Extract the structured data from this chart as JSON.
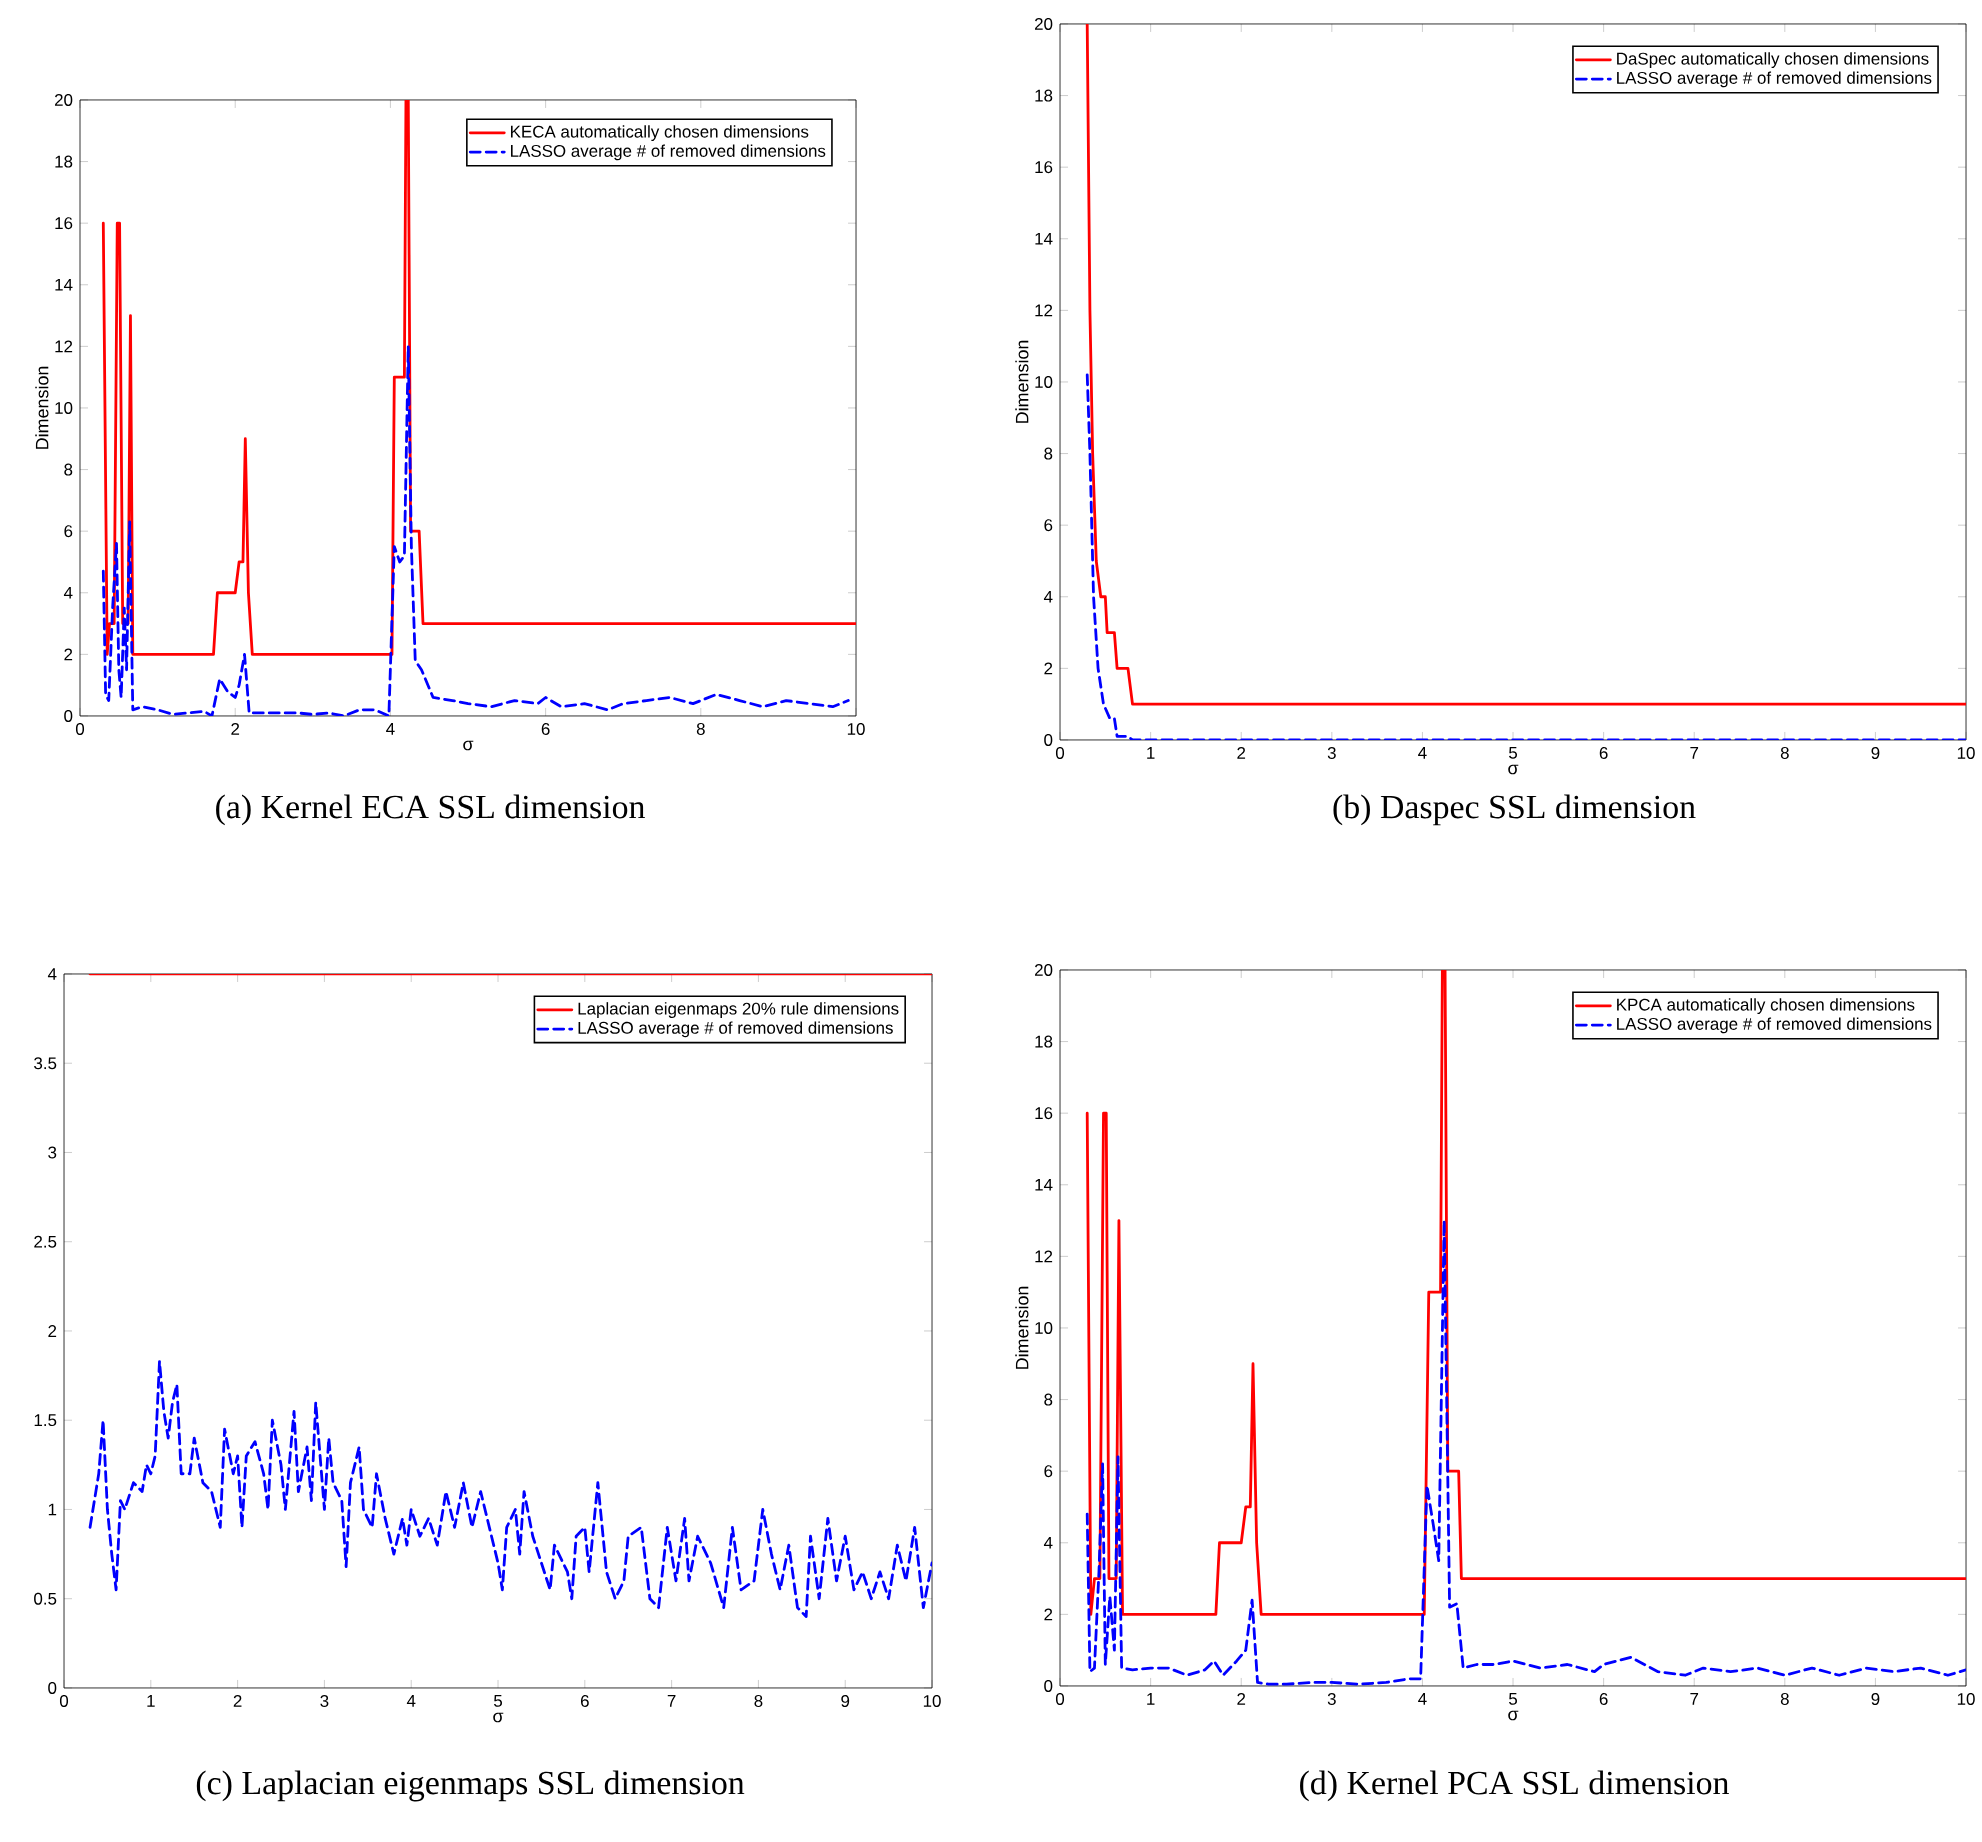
{
  "chart_data": [
    {
      "type": "line",
      "title": "(a) Kernel ECA SSL dimension",
      "xlabel": "σ",
      "ylabel": "Dimension",
      "xlim": [
        0,
        10
      ],
      "ylim": [
        0,
        20
      ],
      "xticks": [
        0,
        2,
        4,
        6,
        8,
        10
      ],
      "yticks": [
        0,
        2,
        4,
        6,
        8,
        10,
        12,
        14,
        16,
        18,
        20
      ],
      "legend": "top right",
      "grid": false,
      "series": [
        {
          "name": "KECA automatically chosen dimensions",
          "color": "#ff0000",
          "line_style": "solid",
          "x": [
            0.3,
            0.35,
            0.38,
            0.44,
            0.48,
            0.51,
            0.55,
            0.62,
            0.65,
            0.68,
            1.72,
            1.77,
            2.0,
            2.05,
            2.1,
            2.13,
            2.17,
            2.22,
            4.02,
            4.05,
            4.18,
            4.2,
            4.23,
            4.26,
            4.37,
            4.42,
            10
          ],
          "values": [
            16,
            2,
            3,
            3,
            16,
            16,
            3,
            3,
            13,
            2,
            2,
            4,
            4,
            5,
            5,
            9,
            4,
            2,
            2,
            11,
            11,
            20,
            20,
            6,
            6,
            3,
            3
          ]
        },
        {
          "name": "LASSO average # of removed dimensions",
          "color": "#0000ff",
          "line_style": "dashed",
          "x": [
            0.3,
            0.33,
            0.37,
            0.42,
            0.47,
            0.5,
            0.53,
            0.57,
            0.6,
            0.64,
            0.68,
            0.8,
            1.0,
            1.2,
            1.4,
            1.6,
            1.7,
            1.8,
            1.9,
            2.0,
            2.05,
            2.12,
            2.18,
            2.4,
            2.6,
            2.8,
            3.0,
            3.2,
            3.4,
            3.6,
            3.8,
            3.98,
            4.05,
            4.12,
            4.18,
            4.23,
            4.27,
            4.32,
            4.4,
            4.55,
            4.8,
            5.0,
            5.3,
            5.6,
            5.9,
            6.0,
            6.2,
            6.5,
            6.8,
            7.0,
            7.3,
            7.6,
            7.9,
            8.2,
            8.5,
            8.8,
            9.1,
            9.4,
            9.7,
            9.9
          ],
          "values": [
            4.7,
            0.7,
            0.5,
            3.5,
            5.6,
            1.5,
            0.6,
            3.5,
            1.5,
            6.3,
            0.2,
            0.3,
            0.2,
            0.05,
            0.1,
            0.15,
            0,
            1.2,
            0.8,
            0.6,
            1.0,
            2.0,
            0.1,
            0.1,
            0.1,
            0.1,
            0.05,
            0.1,
            0,
            0.2,
            0.2,
            0,
            5.5,
            5.0,
            5.2,
            12,
            5.5,
            1.8,
            1.5,
            0.6,
            0.5,
            0.4,
            0.3,
            0.5,
            0.4,
            0.6,
            0.3,
            0.4,
            0.2,
            0.4,
            0.5,
            0.6,
            0.4,
            0.7,
            0.5,
            0.3,
            0.5,
            0.4,
            0.3,
            0.5
          ]
        }
      ]
    },
    {
      "type": "line",
      "title": "(b) Daspec SSL dimension",
      "xlabel": "σ",
      "ylabel": "Dimension",
      "xlim": [
        0,
        10
      ],
      "ylim": [
        0,
        20
      ],
      "xticks": [
        0,
        1,
        2,
        3,
        4,
        5,
        6,
        7,
        8,
        9,
        10
      ],
      "yticks": [
        0,
        2,
        4,
        6,
        8,
        10,
        12,
        14,
        16,
        18,
        20
      ],
      "legend": "top right",
      "grid": false,
      "series": [
        {
          "name": "DaSpec automatically chosen dimensions",
          "color": "#ff0000",
          "line_style": "solid",
          "x": [
            0.3,
            0.33,
            0.36,
            0.4,
            0.45,
            0.5,
            0.52,
            0.6,
            0.63,
            0.75,
            0.8,
            10
          ],
          "values": [
            20,
            12,
            8,
            5,
            4,
            4,
            3,
            3,
            2,
            2,
            1,
            1
          ]
        },
        {
          "name": "LASSO average # of removed dimensions",
          "color": "#0000ff",
          "line_style": "dashed",
          "x": [
            0.3,
            0.33,
            0.37,
            0.42,
            0.48,
            0.55,
            0.6,
            0.63,
            0.7,
            0.75,
            0.8,
            10
          ],
          "values": [
            10.2,
            8,
            4,
            2,
            1,
            0.6,
            0.6,
            0.1,
            0.1,
            0.1,
            0,
            0
          ]
        }
      ]
    },
    {
      "type": "line",
      "title": "(c) Laplacian eigenmaps SSL dimension",
      "xlabel": "σ",
      "xlim": [
        0,
        10
      ],
      "ylim": [
        0,
        4
      ],
      "xticks": [
        0,
        1,
        2,
        3,
        4,
        5,
        6,
        7,
        8,
        9,
        10
      ],
      "yticks": [
        0,
        0.5,
        1,
        1.5,
        2,
        2.5,
        3,
        3.5,
        4
      ],
      "legend": "top right",
      "grid": false,
      "series": [
        {
          "name": "Laplacian eigenmaps 20% rule dimensions",
          "color": "#ff0000",
          "line_style": "solid",
          "x": [
            0.3,
            10
          ],
          "values": [
            4,
            4
          ]
        },
        {
          "name": "LASSO average # of removed dimensions",
          "color": "#0000ff",
          "line_style": "dashed",
          "x": [
            0.3,
            0.35,
            0.4,
            0.45,
            0.5,
            0.55,
            0.6,
            0.65,
            0.7,
            0.8,
            0.9,
            0.95,
            1.0,
            1.05,
            1.1,
            1.15,
            1.2,
            1.25,
            1.3,
            1.35,
            1.45,
            1.5,
            1.6,
            1.7,
            1.8,
            1.85,
            1.95,
            2.0,
            2.05,
            2.1,
            2.2,
            2.3,
            2.35,
            2.4,
            2.5,
            2.55,
            2.65,
            2.7,
            2.8,
            2.85,
            2.9,
            3.0,
            3.05,
            3.1,
            3.2,
            3.25,
            3.3,
            3.4,
            3.45,
            3.55,
            3.6,
            3.7,
            3.8,
            3.9,
            3.95,
            4.0,
            4.1,
            4.2,
            4.3,
            4.4,
            4.5,
            4.6,
            4.7,
            4.8,
            4.9,
            5.0,
            5.05,
            5.1,
            5.2,
            5.25,
            5.3,
            5.4,
            5.5,
            5.6,
            5.65,
            5.8,
            5.85,
            5.9,
            6.0,
            6.05,
            6.15,
            6.25,
            6.35,
            6.45,
            6.5,
            6.65,
            6.75,
            6.85,
            6.95,
            7.05,
            7.15,
            7.2,
            7.3,
            7.45,
            7.6,
            7.7,
            7.8,
            7.95,
            8.05,
            8.15,
            8.25,
            8.35,
            8.45,
            8.55,
            8.6,
            8.7,
            8.8,
            8.9,
            9.0,
            9.1,
            9.2,
            9.3,
            9.4,
            9.5,
            9.6,
            9.7,
            9.8,
            9.9,
            10.0
          ],
          "values": [
            0.9,
            1.05,
            1.2,
            1.5,
            1.0,
            0.75,
            0.55,
            1.05,
            1.0,
            1.15,
            1.1,
            1.25,
            1.2,
            1.3,
            1.83,
            1.55,
            1.4,
            1.6,
            1.7,
            1.2,
            1.2,
            1.4,
            1.15,
            1.1,
            0.9,
            1.45,
            1.2,
            1.3,
            0.9,
            1.3,
            1.38,
            1.2,
            1.0,
            1.5,
            1.25,
            1.0,
            1.55,
            1.1,
            1.35,
            1.05,
            1.6,
            1.0,
            1.4,
            1.15,
            1.05,
            0.68,
            1.15,
            1.35,
            1.0,
            0.9,
            1.2,
            0.95,
            0.75,
            0.95,
            0.8,
            1.0,
            0.85,
            0.95,
            0.8,
            1.1,
            0.9,
            1.15,
            0.9,
            1.1,
            0.9,
            0.7,
            0.55,
            0.9,
            1.0,
            0.75,
            1.1,
            0.85,
            0.7,
            0.55,
            0.8,
            0.65,
            0.5,
            0.85,
            0.9,
            0.65,
            1.15,
            0.65,
            0.5,
            0.6,
            0.85,
            0.9,
            0.5,
            0.45,
            0.9,
            0.6,
            0.95,
            0.6,
            0.85,
            0.7,
            0.45,
            0.9,
            0.55,
            0.6,
            1.0,
            0.75,
            0.55,
            0.8,
            0.45,
            0.4,
            0.85,
            0.5,
            0.95,
            0.6,
            0.85,
            0.55,
            0.65,
            0.5,
            0.65,
            0.5,
            0.8,
            0.6,
            0.9,
            0.45,
            0.7
          ]
        }
      ]
    },
    {
      "type": "line",
      "title": "(d) Kernel PCA SSL dimension",
      "xlabel": "σ",
      "ylabel": "Dimension",
      "xlim": [
        0,
        10
      ],
      "ylim": [
        0,
        20
      ],
      "xticks": [
        0,
        1,
        2,
        3,
        4,
        5,
        6,
        7,
        8,
        9,
        10
      ],
      "yticks": [
        0,
        2,
        4,
        6,
        8,
        10,
        12,
        14,
        16,
        18,
        20
      ],
      "legend": "top right",
      "grid": false,
      "series": [
        {
          "name": "KPCA automatically chosen dimensions",
          "color": "#ff0000",
          "line_style": "solid",
          "x": [
            0.3,
            0.34,
            0.38,
            0.44,
            0.48,
            0.51,
            0.54,
            0.62,
            0.65,
            0.69,
            1.72,
            1.76,
            2.0,
            2.05,
            2.1,
            2.13,
            2.17,
            2.22,
            4.02,
            4.07,
            4.2,
            4.22,
            4.25,
            4.28,
            4.4,
            4.43,
            10
          ],
          "values": [
            16,
            2,
            3,
            3,
            16,
            16,
            3,
            3,
            13,
            2,
            2,
            4,
            4,
            5,
            5,
            9,
            4,
            2,
            2,
            11,
            11,
            20,
            20,
            6,
            6,
            3,
            3
          ]
        },
        {
          "name": "LASSO average # of removed dimensions",
          "color": "#0000ff",
          "line_style": "dashed",
          "x": [
            0.3,
            0.33,
            0.38,
            0.43,
            0.47,
            0.5,
            0.55,
            0.6,
            0.64,
            0.68,
            0.8,
            1.0,
            1.2,
            1.4,
            1.6,
            1.7,
            1.8,
            1.95,
            2.05,
            2.12,
            2.18,
            2.3,
            2.5,
            2.8,
            3.0,
            3.3,
            3.6,
            3.85,
            3.98,
            4.05,
            4.12,
            4.18,
            4.24,
            4.3,
            4.38,
            4.45,
            4.6,
            4.8,
            5.0,
            5.3,
            5.6,
            5.9,
            6.0,
            6.3,
            6.6,
            6.9,
            7.1,
            7.4,
            7.7,
            8.0,
            8.3,
            8.6,
            8.9,
            9.2,
            9.5,
            9.8,
            10
          ],
          "values": [
            4.8,
            0.4,
            0.5,
            3.2,
            6.2,
            0.6,
            2.5,
            1.0,
            6.4,
            0.5,
            0.45,
            0.5,
            0.5,
            0.3,
            0.45,
            0.7,
            0.3,
            0.7,
            1.0,
            2.4,
            0.1,
            0.05,
            0.05,
            0.1,
            0.1,
            0.05,
            0.1,
            0.2,
            0.2,
            5.6,
            4.5,
            3.5,
            13,
            2.2,
            2.3,
            0.5,
            0.6,
            0.6,
            0.7,
            0.5,
            0.6,
            0.4,
            0.6,
            0.8,
            0.4,
            0.3,
            0.5,
            0.4,
            0.5,
            0.3,
            0.5,
            0.3,
            0.5,
            0.4,
            0.5,
            0.3,
            0.45
          ]
        }
      ]
    }
  ]
}
